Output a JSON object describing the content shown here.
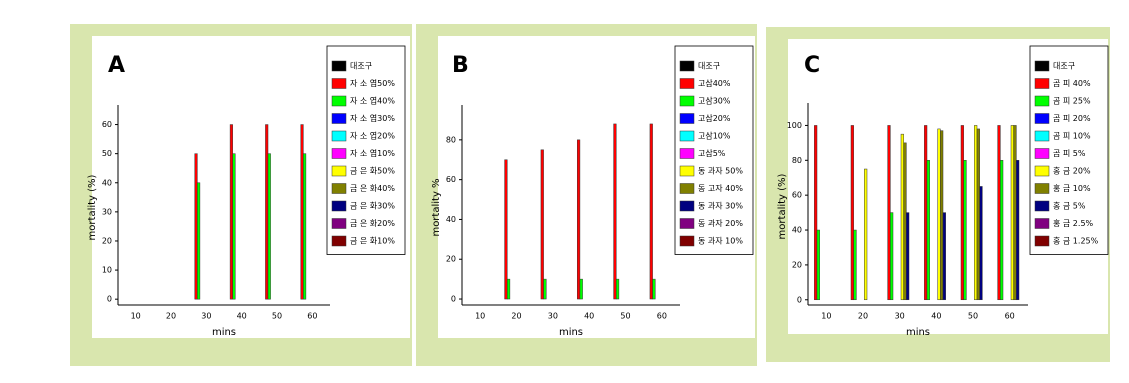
{
  "chart_data": [
    {
      "type": "bar",
      "label": "A",
      "x_label": "mins",
      "y_label": "mortality (%)",
      "categories": [
        "10",
        "20",
        "30",
        "40",
        "50",
        "60"
      ],
      "ylim": [
        -2,
        65
      ],
      "yticks": [
        0,
        10,
        20,
        30,
        40,
        50,
        60
      ],
      "series": [
        {
          "name": "대조구",
          "color": "#000000",
          "values": [
            0,
            0,
            0,
            0,
            0,
            0
          ]
        },
        {
          "name": "자 소 엽50%",
          "color": "#ff0000",
          "values": [
            0,
            0,
            50,
            60,
            60,
            60
          ]
        },
        {
          "name": "자 소 엽40%",
          "color": "#00ff00",
          "values": [
            0,
            0,
            40,
            50,
            50,
            50
          ]
        },
        {
          "name": "자 소 엽30%",
          "color": "#0000ff",
          "values": [
            0,
            0,
            0,
            0,
            0,
            0
          ]
        },
        {
          "name": "자 소 엽20%",
          "color": "#00ffff",
          "values": [
            0,
            0,
            0,
            0,
            0,
            0
          ]
        },
        {
          "name": "자 소 엽10%",
          "color": "#ff00ff",
          "values": [
            0,
            0,
            0,
            0,
            0,
            0
          ]
        },
        {
          "name": "금 은 화50%",
          "color": "#ffff00",
          "values": [
            0,
            0,
            0,
            0,
            0,
            0
          ]
        },
        {
          "name": "금 은 화40%",
          "color": "#808000",
          "values": [
            0,
            0,
            0,
            0,
            0,
            0
          ]
        },
        {
          "name": "금 은 화30%",
          "color": "#000080",
          "values": [
            0,
            0,
            0,
            0,
            0,
            0
          ]
        },
        {
          "name": "금 은 화20%",
          "color": "#800080",
          "values": [
            0,
            0,
            0,
            0,
            0,
            0
          ]
        },
        {
          "name": "금 은 화10%",
          "color": "#800000",
          "values": [
            0,
            0,
            0,
            0,
            0,
            0
          ]
        }
      ]
    },
    {
      "type": "bar",
      "label": "B",
      "x_label": "mins",
      "y_label": "mortality %",
      "categories": [
        "10",
        "20",
        "30",
        "40",
        "50",
        "60"
      ],
      "ylim": [
        -3,
        95
      ],
      "yticks": [
        0,
        20,
        40,
        60,
        80
      ],
      "series": [
        {
          "name": "대조구",
          "color": "#000000",
          "values": [
            0,
            0,
            0,
            0,
            0,
            0
          ]
        },
        {
          "name": "고삼40%",
          "color": "#ff0000",
          "values": [
            0,
            70,
            75,
            80,
            88,
            88
          ]
        },
        {
          "name": "고삼30%",
          "color": "#00ff00",
          "values": [
            0,
            10,
            10,
            10,
            10,
            10
          ]
        },
        {
          "name": "고삼20%",
          "color": "#0000ff",
          "values": [
            0,
            0,
            0,
            0,
            0,
            0
          ]
        },
        {
          "name": "고삼10%",
          "color": "#00ffff",
          "values": [
            0,
            0,
            0,
            0,
            0,
            0
          ]
        },
        {
          "name": "고삼5%",
          "color": "#ff00ff",
          "values": [
            0,
            0,
            0,
            0,
            0,
            0
          ]
        },
        {
          "name": "동 과자 50%",
          "color": "#ffff00",
          "values": [
            0,
            0,
            0,
            0,
            0,
            0
          ]
        },
        {
          "name": "동 고자 40%",
          "color": "#808000",
          "values": [
            0,
            0,
            0,
            0,
            0,
            0
          ]
        },
        {
          "name": "동 과자 30%",
          "color": "#000080",
          "values": [
            0,
            0,
            0,
            0,
            0,
            0
          ]
        },
        {
          "name": "동 과자 20%",
          "color": "#800080",
          "values": [
            0,
            0,
            0,
            0,
            0,
            0
          ]
        },
        {
          "name": "동 과자 10%",
          "color": "#800000",
          "values": [
            0,
            0,
            0,
            0,
            0,
            0
          ]
        }
      ]
    },
    {
      "type": "bar",
      "label": "C",
      "x_label": "mins",
      "y_label": "mortality (%)",
      "categories": [
        "10",
        "20",
        "30",
        "40",
        "50",
        "60"
      ],
      "ylim": [
        -3,
        110
      ],
      "yticks": [
        0,
        20,
        40,
        60,
        80,
        100
      ],
      "series": [
        {
          "name": "대조구",
          "color": "#000000",
          "values": [
            0,
            0,
            0,
            0,
            0,
            0
          ]
        },
        {
          "name": "곰 피 40%",
          "color": "#ff0000",
          "values": [
            100,
            100,
            100,
            100,
            100,
            100
          ]
        },
        {
          "name": "곰 피 25%",
          "color": "#00ff00",
          "values": [
            40,
            40,
            50,
            80,
            80,
            80
          ]
        },
        {
          "name": "곰 피 20%",
          "color": "#0000ff",
          "values": [
            0,
            0,
            0,
            0,
            0,
            0
          ]
        },
        {
          "name": "곰 피 10%",
          "color": "#00ffff",
          "values": [
            0,
            0,
            0,
            0,
            0,
            0
          ]
        },
        {
          "name": "곰 피 5%",
          "color": "#ff00ff",
          "values": [
            0,
            0,
            0,
            0,
            0,
            0
          ]
        },
        {
          "name": "홍 금 20%",
          "color": "#ffff00",
          "values": [
            0,
            75,
            95,
            98,
            100,
            100
          ]
        },
        {
          "name": "홍 금 10%",
          "color": "#808000",
          "values": [
            0,
            0,
            90,
            97,
            98,
            100
          ]
        },
        {
          "name": "홍 금 5%",
          "color": "#000080",
          "values": [
            0,
            0,
            50,
            50,
            65,
            80
          ]
        },
        {
          "name": "홍 금 2.5%",
          "color": "#800080",
          "values": [
            0,
            0,
            0,
            0,
            0,
            0
          ]
        },
        {
          "name": "홍 금 1.25%",
          "color": "#800000",
          "values": [
            0,
            0,
            0,
            0,
            0,
            0
          ]
        }
      ]
    }
  ]
}
